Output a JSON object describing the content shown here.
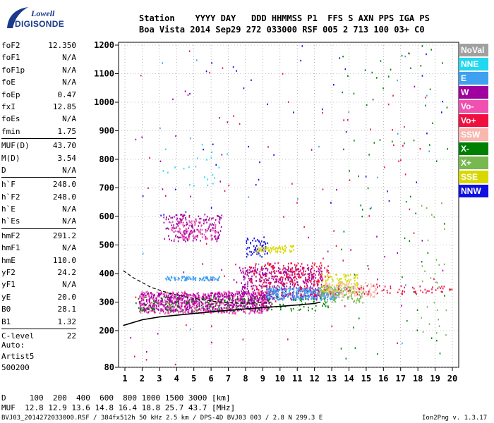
{
  "logo": {
    "top": "Lowell",
    "bottom": "DIGISONDE"
  },
  "header": {
    "row1": "Station    YYYY DAY   DDD HHMMSS P1  FFS S AXN PPS IGA PS",
    "row2": "Boa Vista 2014 Sep29 272 033000 RSF 005 2 713 100 03+ C0"
  },
  "params": [
    {
      "name": "foF2",
      "value": "12.350"
    },
    {
      "name": "foF1",
      "value": "N/A"
    },
    {
      "name": "foF1p",
      "value": "N/A"
    },
    {
      "name": "foE",
      "value": "N/A"
    },
    {
      "name": "foEp",
      "value": "0.47"
    },
    {
      "name": "fxI",
      "value": "12.85"
    },
    {
      "name": "foEs",
      "value": "N/A"
    },
    {
      "name": "fmin",
      "value": "1.75"
    },
    {
      "sep": true
    },
    {
      "name": "MUF(D)",
      "value": "43.70"
    },
    {
      "name": "M(D)",
      "value": "3.54"
    },
    {
      "name": "D",
      "value": "N/A"
    },
    {
      "sep": true
    },
    {
      "name": "h`F",
      "value": "248.0"
    },
    {
      "name": "h`F2",
      "value": "248.0"
    },
    {
      "name": "h`E",
      "value": "N/A"
    },
    {
      "name": "h`Es",
      "value": "N/A"
    },
    {
      "sep": true
    },
    {
      "name": "hmF2",
      "value": "291.2"
    },
    {
      "name": "hmF1",
      "value": "N/A"
    },
    {
      "name": "hmE",
      "value": "110.0"
    },
    {
      "name": "yF2",
      "value": "24.2"
    },
    {
      "name": "yF1",
      "value": "N/A"
    },
    {
      "name": "yE",
      "value": "20.0"
    },
    {
      "name": "B0",
      "value": "28.1"
    },
    {
      "name": "B1",
      "value": "1.32"
    },
    {
      "sep": true
    },
    {
      "name": "C-level",
      "value": "22"
    }
  ],
  "auto": [
    "Auto:",
    "Artist5",
    "500200"
  ],
  "muf_table": {
    "row1": "D     100  200  400  600  800 1000 1500 3000 [km]",
    "row2": "MUF  12.8 12.9 13.6 14.8 16.4 18.8 25.7 43.7 [MHz]"
  },
  "footer": {
    "left": "BVJ03_2014272033000.RSF / 384fx512h 50 kHz 2.5 km / DPS-4D BVJ03 003 / 2.8 N 299.3 E",
    "right": "Ion2Png v. 1.3.17"
  },
  "legend": [
    {
      "label": "NoVal",
      "color": "#a0a0a0"
    },
    {
      "label": "NNE",
      "color": "#20d8f0"
    },
    {
      "label": "E",
      "color": "#3fa0f0"
    },
    {
      "label": "W",
      "color": "#a000a0"
    },
    {
      "label": "Vo-",
      "color": "#f050b0"
    },
    {
      "label": "Vo+",
      "color": "#f01040"
    },
    {
      "label": "SSW",
      "color": "#f8b8b0"
    },
    {
      "label": "X-",
      "color": "#008000"
    },
    {
      "label": "X+",
      "color": "#78b850"
    },
    {
      "label": "SSE",
      "color": "#d8d800"
    },
    {
      "label": "NNW",
      "color": "#1010e0"
    }
  ],
  "chart_data": {
    "type": "scatter",
    "xlim": [
      1,
      20
    ],
    "ylim": [
      80,
      1200
    ],
    "x_ticks": [
      1,
      2,
      3,
      4,
      5,
      6,
      7,
      8,
      9,
      10,
      11,
      12,
      13,
      14,
      15,
      16,
      17,
      18,
      19,
      20
    ],
    "y_ticks": [
      80,
      200,
      300,
      400,
      500,
      600,
      700,
      800,
      900,
      1000,
      1100,
      1200
    ],
    "grid": true,
    "profile_curve": [
      [
        0.9,
        218
      ],
      [
        2,
        238
      ],
      [
        3,
        248
      ],
      [
        4,
        254
      ],
      [
        5,
        260
      ],
      [
        6,
        266
      ],
      [
        7,
        271
      ],
      [
        8,
        276
      ],
      [
        9,
        281
      ],
      [
        10,
        285
      ],
      [
        11,
        290
      ],
      [
        12,
        295
      ],
      [
        12.35,
        300
      ]
    ],
    "profile_dashed": [
      [
        0.9,
        410
      ],
      [
        1.5,
        385
      ],
      [
        2.5,
        352
      ],
      [
        3.5,
        332
      ],
      [
        4.5,
        318
      ],
      [
        5.5,
        308
      ],
      [
        6.5,
        300
      ],
      [
        7.5,
        296
      ],
      [
        8.5,
        297
      ],
      [
        9.5,
        300
      ]
    ],
    "clusters": [
      {
        "color": "#f050b0",
        "x": [
          1.8,
          9.3
        ],
        "y": [
          262,
          340
        ],
        "n": 650
      },
      {
        "color": "#a000a0",
        "x": [
          1.8,
          9.5
        ],
        "y": [
          268,
          335
        ],
        "n": 550
      },
      {
        "color": "#a000a0",
        "x": [
          7.6,
          12.4
        ],
        "y": [
          310,
          425
        ],
        "n": 420
      },
      {
        "color": "#f01040",
        "x": [
          8.2,
          12.8
        ],
        "y": [
          325,
          440
        ],
        "n": 260
      },
      {
        "color": "#3fa0f0",
        "x": [
          9.2,
          13.4
        ],
        "y": [
          310,
          355
        ],
        "n": 320
      },
      {
        "color": "#3fa0f0",
        "x": [
          3.3,
          6.5
        ],
        "y": [
          378,
          392
        ],
        "n": 90
      },
      {
        "color": "#a000a0",
        "x": [
          3.2,
          6.6
        ],
        "y": [
          515,
          610
        ],
        "n": 180
      },
      {
        "color": "#f050b0",
        "x": [
          3.6,
          6.3
        ],
        "y": [
          520,
          590
        ],
        "n": 90
      },
      {
        "color": "#1010e0",
        "x": [
          8.0,
          9.3
        ],
        "y": [
          460,
          530
        ],
        "n": 60
      },
      {
        "color": "#d8d800",
        "x": [
          8.6,
          10.8
        ],
        "y": [
          475,
          500
        ],
        "n": 70
      },
      {
        "color": "#d8d800",
        "x": [
          12.4,
          14.5
        ],
        "y": [
          330,
          400
        ],
        "n": 110
      },
      {
        "color": "#f8b8b0",
        "x": [
          12.6,
          15.6
        ],
        "y": [
          320,
          370
        ],
        "n": 160
      },
      {
        "color": "#f01040",
        "x": [
          12.5,
          20
        ],
        "y": [
          330,
          360
        ],
        "n": 70
      },
      {
        "color": "#008000",
        "x": [
          1.6,
          12.8
        ],
        "y": [
          270,
          320
        ],
        "n": 160
      },
      {
        "color": "#78b850",
        "x": [
          12.2,
          14.8
        ],
        "y": [
          300,
          360
        ],
        "n": 90
      },
      {
        "color": "#20d8f0",
        "x": [
          3.0,
          7.0
        ],
        "y": [
          700,
          860
        ],
        "n": 22
      },
      {
        "color": "#1010e0",
        "x": [
          2.0,
          19.5
        ],
        "y": [
          600,
          1200
        ],
        "n": 40
      },
      {
        "color": "#f01040",
        "x": [
          1.3,
          19.8
        ],
        "y": [
          90,
          1200
        ],
        "n": 70
      },
      {
        "color": "#008000",
        "x": [
          13.5,
          19.8
        ],
        "y": [
          100,
          1200
        ],
        "n": 70
      },
      {
        "color": "#a000a0",
        "x": [
          1.3,
          19.5
        ],
        "y": [
          100,
          1150
        ],
        "n": 40
      },
      {
        "color": "#78b850",
        "x": [
          18,
          19.9
        ],
        "y": [
          150,
          650
        ],
        "n": 30
      },
      {
        "color": "#3fa0f0",
        "x": [
          2,
          19.5
        ],
        "y": [
          90,
          1190
        ],
        "n": 20
      }
    ]
  }
}
